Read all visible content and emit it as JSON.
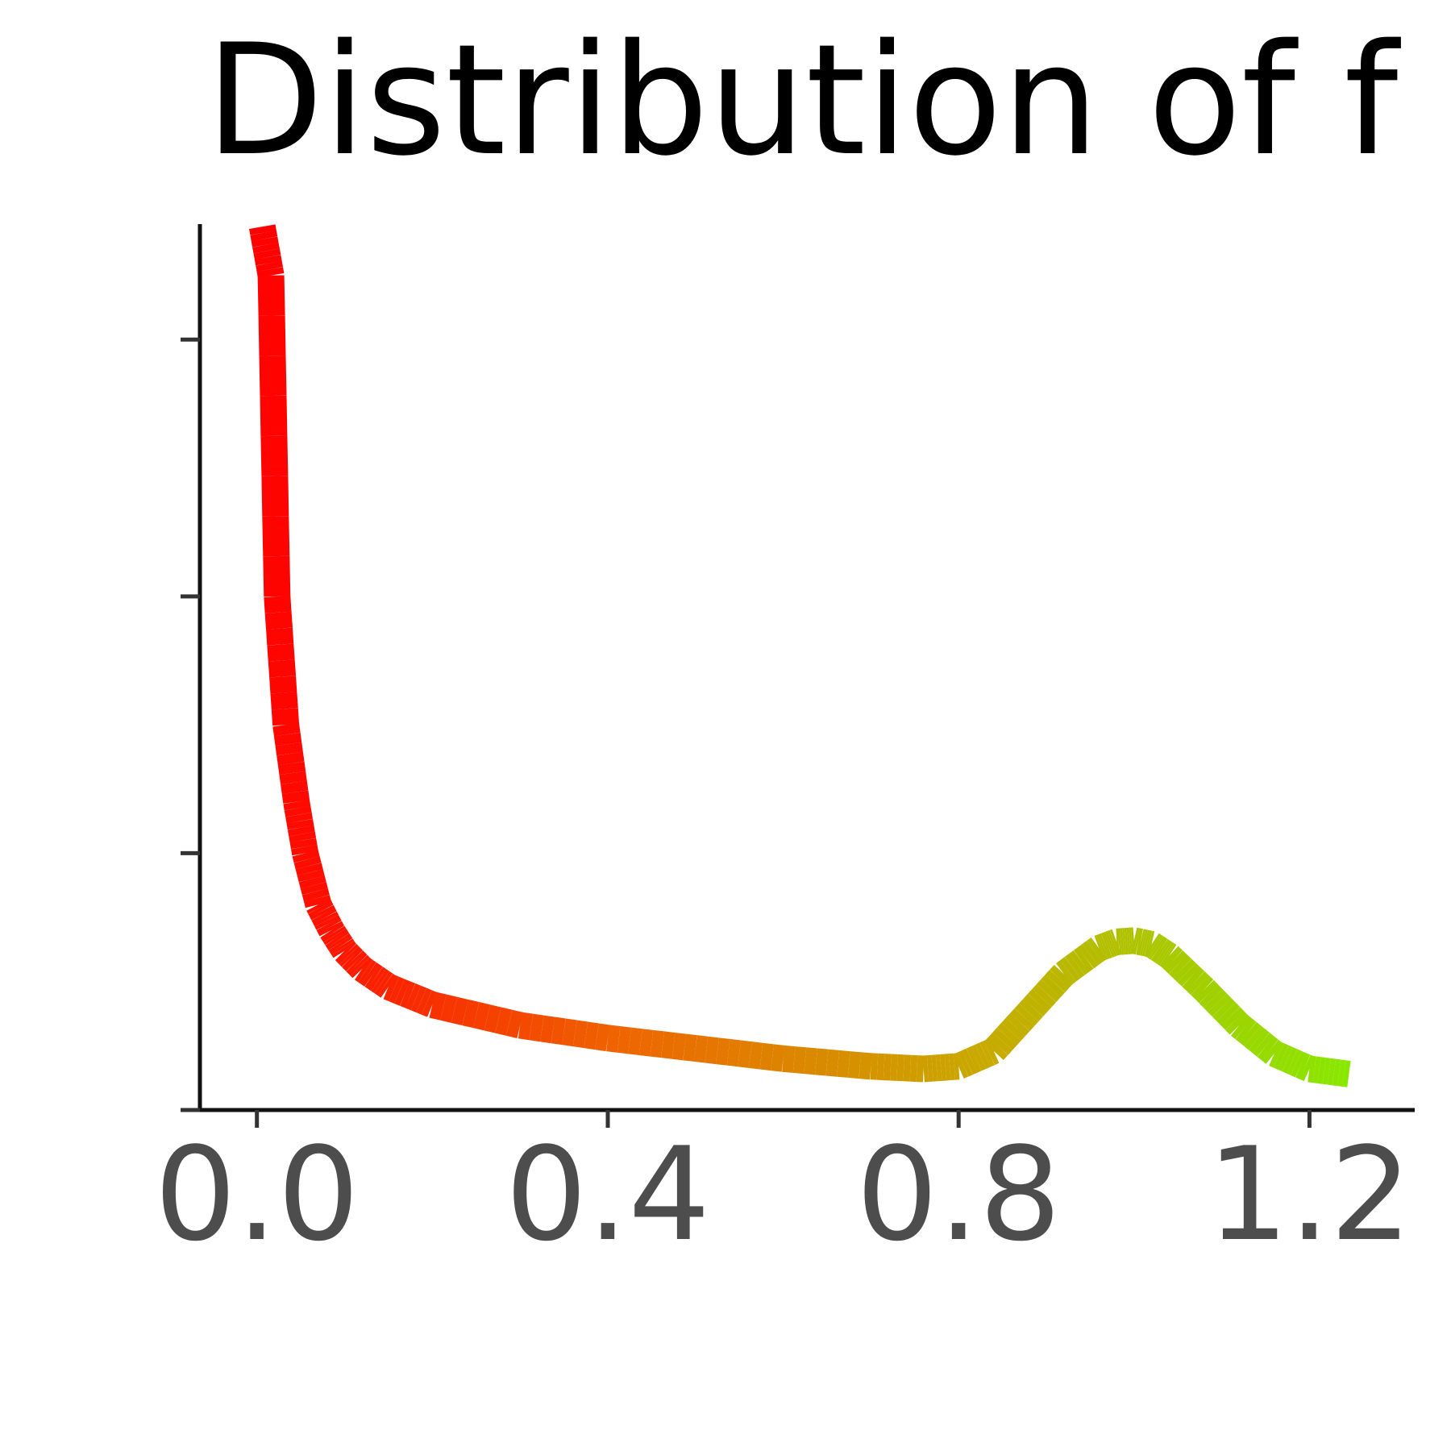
{
  "chart_data": {
    "type": "line",
    "title": "Distribution of f",
    "xlabel": "",
    "ylabel": "",
    "xlim": [
      -0.065,
      1.32
    ],
    "ylim": [
      0,
      3.45
    ],
    "x_ticks": [
      0.0,
      0.4,
      0.8,
      1.2
    ],
    "x_tick_labels": [
      "0.0",
      "0.4",
      "0.8",
      "1.2"
    ],
    "y_ticks": [
      0.0,
      1.0,
      2.0,
      3.0
    ],
    "y_tick_labels": [
      "",
      "",
      "",
      ""
    ],
    "grid": false,
    "legend": "none",
    "color_gradient": [
      "#ff0000",
      "#ee6600",
      "#c8aa00",
      "#88e800"
    ],
    "series": [
      {
        "x": [
          0.006,
          0.016,
          0.023,
          0.033,
          0.045,
          0.055,
          0.07,
          0.085,
          0.1,
          0.12,
          0.15,
          0.2,
          0.3,
          0.4,
          0.5,
          0.6,
          0.7,
          0.76,
          0.8,
          0.84,
          0.88,
          0.92,
          0.96,
          0.98,
          1.0,
          1.02,
          1.04,
          1.08,
          1.12,
          1.16,
          1.2,
          1.245
        ],
        "y": [
          3.44,
          3.25,
          2.0,
          1.5,
          1.2,
          1.0,
          0.8,
          0.7,
          0.62,
          0.55,
          0.48,
          0.41,
          0.33,
          0.28,
          0.24,
          0.2,
          0.17,
          0.16,
          0.17,
          0.23,
          0.38,
          0.53,
          0.63,
          0.655,
          0.66,
          0.645,
          0.6,
          0.47,
          0.33,
          0.22,
          0.16,
          0.14
        ]
      }
    ]
  }
}
